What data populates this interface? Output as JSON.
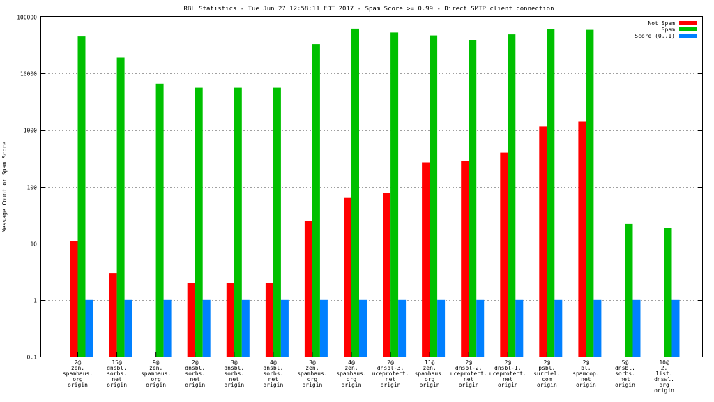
{
  "chart_data": {
    "type": "bar",
    "title": "RBL Statistics - Tue Jun 27 12:58:11 EDT 2017 - Spam Score >= 0.99 - Direct SMTP client connection",
    "xlabel": "",
    "ylabel": "Message Count or Spam Score",
    "yscale": "log",
    "ylim": [
      0.1,
      100000
    ],
    "yticks": [
      "0.1",
      "1",
      "10",
      "100",
      "1000",
      "10000",
      "100000"
    ],
    "grid": true,
    "legend_position": "top-right",
    "categories": [
      [
        "2@",
        "zen.",
        "spamhaus.",
        "org",
        "origin"
      ],
      [
        "15@",
        "dnsbl.",
        "sorbs.",
        "net",
        "origin"
      ],
      [
        "9@",
        "zen.",
        "spamhaus.",
        "org",
        "origin"
      ],
      [
        "2@",
        "dnsbl.",
        "sorbs.",
        "net",
        "origin"
      ],
      [
        "3@",
        "dnsbl.",
        "sorbs.",
        "net",
        "origin"
      ],
      [
        "4@",
        "dnsbl.",
        "sorbs.",
        "net",
        "origin"
      ],
      [
        "3@",
        "zen.",
        "spamhaus.",
        "org",
        "origin"
      ],
      [
        "4@",
        "zen.",
        "spamhaus.",
        "org",
        "origin"
      ],
      [
        "2@",
        "dnsbl-3.",
        "uceprotect.",
        "net",
        "origin"
      ],
      [
        "11@",
        "zen.",
        "spamhaus.",
        "org",
        "origin"
      ],
      [
        "2@",
        "dnsbl-2.",
        "uceprotect.",
        "net",
        "origin"
      ],
      [
        "2@",
        "dnsbl-1.",
        "uceprotect.",
        "net",
        "origin"
      ],
      [
        "2@",
        "psbl.",
        "surriel.",
        "com",
        "origin"
      ],
      [
        "2@",
        "bl.",
        "spamcop.",
        "net",
        "origin"
      ],
      [
        "5@",
        "dnsbl.",
        "sorbs.",
        "net",
        "origin"
      ],
      [
        "10@",
        "2.",
        "list.",
        "dnswl.",
        "org",
        "origin"
      ]
    ],
    "series": [
      {
        "name": "Not Spam",
        "color": "#ff0000",
        "values": [
          11,
          3,
          null,
          2,
          2,
          2,
          25,
          65,
          78,
          270,
          285,
          400,
          1150,
          1400,
          null,
          null
        ]
      },
      {
        "name": "Spam",
        "color": "#00c000",
        "values": [
          45000,
          19000,
          6600,
          5600,
          5600,
          5600,
          33000,
          62000,
          53000,
          47000,
          39000,
          49000,
          60000,
          59000,
          22,
          19
        ]
      },
      {
        "name": "Score (0..1)",
        "color": "#0080ff",
        "values": [
          1,
          1,
          1,
          1,
          1,
          1,
          1,
          1,
          1,
          1,
          1,
          1,
          1,
          1,
          1,
          1
        ]
      }
    ]
  }
}
